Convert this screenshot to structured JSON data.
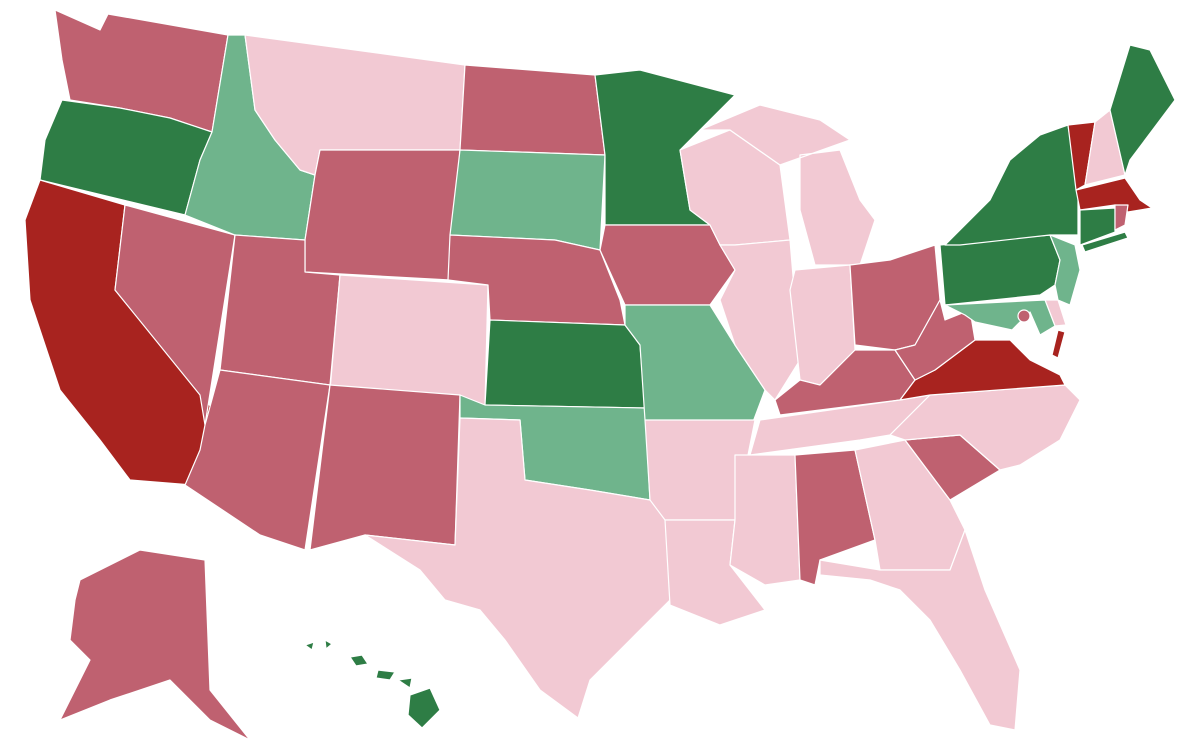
{
  "map": {
    "type": "choropleth",
    "region": "United States",
    "palette": {
      "dark-red": "#a8231f",
      "medium-red": "#bf6170",
      "light-pink": "#f2c9d3",
      "light-green": "#6fb48c",
      "dark-green": "#2e7d45"
    },
    "state_categories": {
      "WA": "medium-red",
      "OR": "dark-green",
      "CA": "dark-red",
      "NV": "medium-red",
      "ID": "light-green",
      "MT": "light-pink",
      "WY": "medium-red",
      "UT": "medium-red",
      "AZ": "medium-red",
      "CO": "light-pink",
      "NM": "medium-red",
      "ND": "medium-red",
      "SD": "light-green",
      "NE": "medium-red",
      "KS": "dark-green",
      "OK": "light-green",
      "TX": "light-pink",
      "MN": "dark-green",
      "IA": "medium-red",
      "MO": "light-green",
      "AR": "light-pink",
      "LA": "light-pink",
      "WI": "light-pink",
      "IL": "light-pink",
      "MI": "light-pink",
      "IN": "light-pink",
      "OH": "medium-red",
      "KY": "medium-red",
      "TN": "light-pink",
      "MS": "light-pink",
      "AL": "medium-red",
      "GA": "light-pink",
      "FL": "light-pink",
      "SC": "medium-red",
      "NC": "light-pink",
      "VA": "dark-red",
      "WV": "medium-red",
      "PA": "dark-green",
      "NY": "dark-green",
      "VT": "dark-red",
      "NH": "light-pink",
      "ME": "dark-green",
      "MA": "dark-red",
      "CT": "dark-green",
      "RI": "medium-red",
      "NJ": "light-green",
      "DE": "light-pink",
      "MD": "light-green",
      "DC": "medium-red",
      "AK": "medium-red",
      "HI": "dark-green"
    }
  }
}
